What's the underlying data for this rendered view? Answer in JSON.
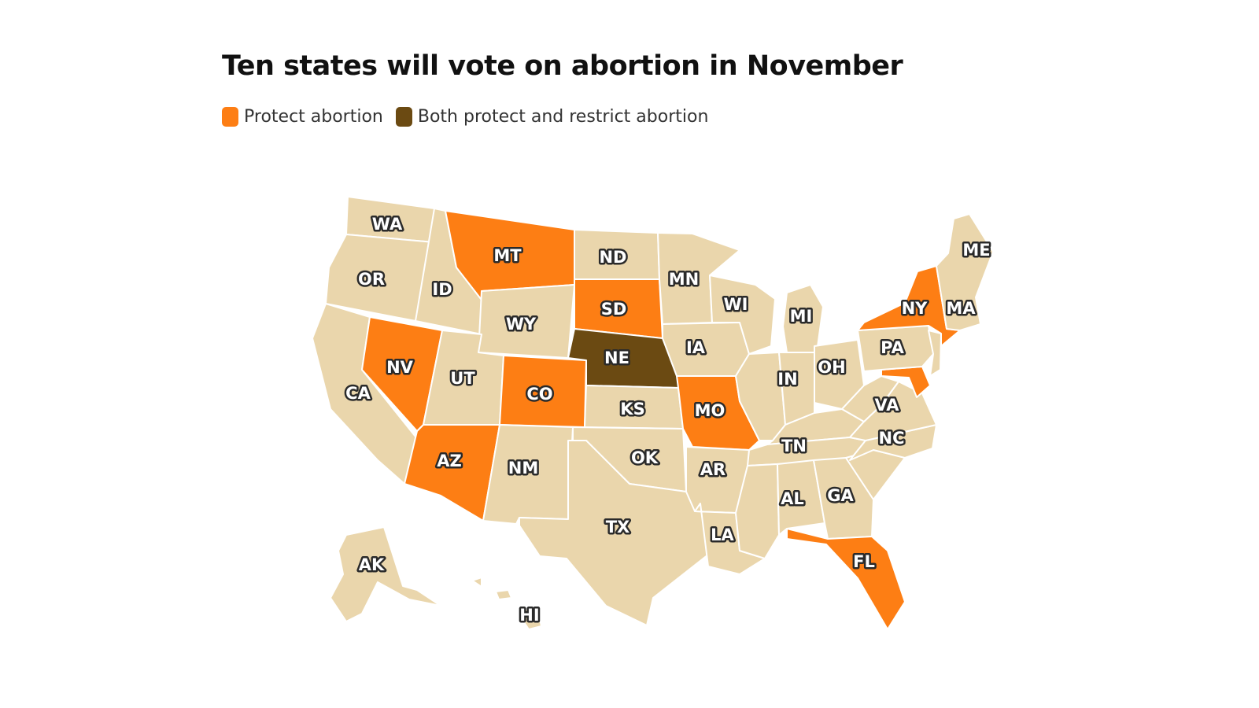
{
  "title": "Ten states will vote on abortion in November",
  "legend": {
    "protect": {
      "label": "Protect abortion",
      "color": "#fd7e14"
    },
    "both": {
      "label": "Both protect and restrict abortion",
      "color": "#6b4a12"
    }
  },
  "colors": {
    "other": "#ead6ac",
    "border": "#ffffff"
  },
  "states": {
    "protect": [
      "MT",
      "SD",
      "NV",
      "CO",
      "AZ",
      "MO",
      "NY",
      "MD",
      "FL"
    ],
    "both": [
      "NE"
    ]
  },
  "labels": [
    "WA",
    "OR",
    "CA",
    "NV",
    "ID",
    "MT",
    "WY",
    "UT",
    "AZ",
    "NM",
    "CO",
    "ND",
    "SD",
    "NE",
    "KS",
    "OK",
    "TX",
    "MN",
    "IA",
    "MO",
    "AR",
    "LA",
    "WI",
    "MI",
    "IN",
    "OH",
    "TN",
    "AL",
    "GA",
    "FL",
    "NC",
    "VA",
    "PA",
    "NY",
    "MA",
    "ME",
    "AK",
    "HI"
  ]
}
